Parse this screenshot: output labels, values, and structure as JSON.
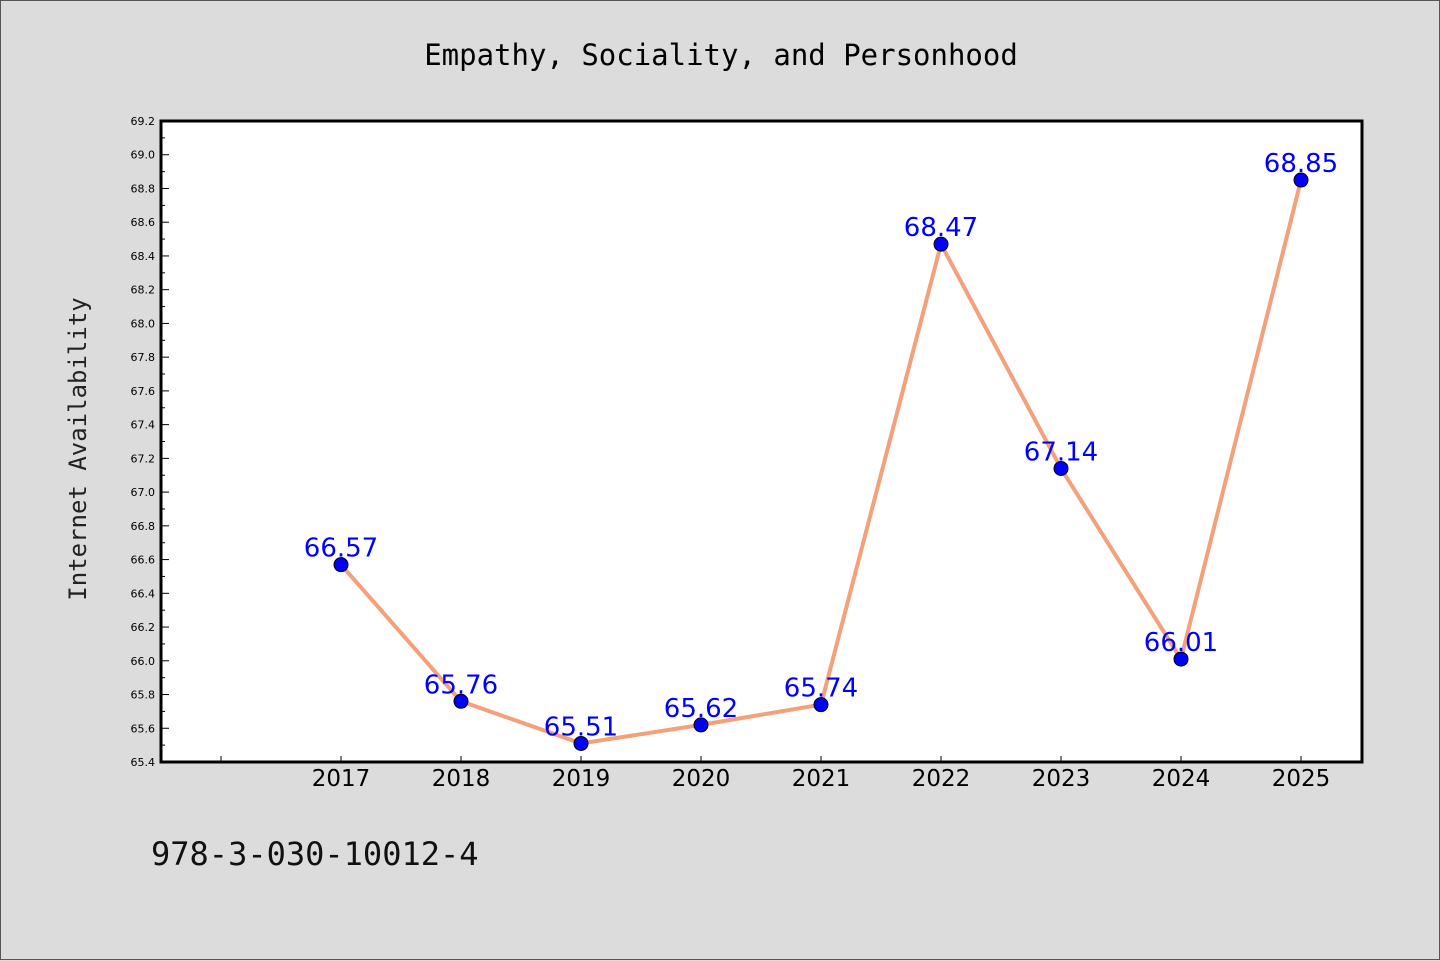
{
  "footer": {
    "isbn": "978-3-030-10012-4"
  },
  "colors": {
    "background": "#dcdcdc",
    "plot_bg": "#ffffff",
    "line": "#f4a07a",
    "marker": "#0000ff",
    "label": "#0000ff"
  },
  "chart_data": {
    "type": "line",
    "title": "Empathy, Sociality, and Personhood",
    "xlabel": "",
    "ylabel": "Internet Availability",
    "categories": [
      "2017",
      "2018",
      "2019",
      "2020",
      "2021",
      "2022",
      "2023",
      "2024",
      "2025"
    ],
    "series": [
      {
        "values": [
          66.57,
          65.76,
          65.51,
          65.62,
          65.74,
          68.47,
          67.14,
          66.01,
          68.85
        ],
        "labels": [
          "66.57",
          "65.76",
          "65.51",
          "65.62",
          "65.74",
          "68.47",
          "67.14",
          "66.01",
          "68.85"
        ]
      }
    ],
    "ylim": [
      65.4,
      69.2
    ],
    "yticks": [
      "65.4",
      "65.6",
      "65.8",
      "66.0",
      "66.2",
      "66.4",
      "66.6",
      "66.8",
      "67.0",
      "67.2",
      "67.4",
      "67.6",
      "67.8",
      "68.0",
      "68.2",
      "68.4",
      "68.6",
      "68.8",
      "69.0",
      "69.2"
    ],
    "grid": false,
    "legend": "none"
  }
}
